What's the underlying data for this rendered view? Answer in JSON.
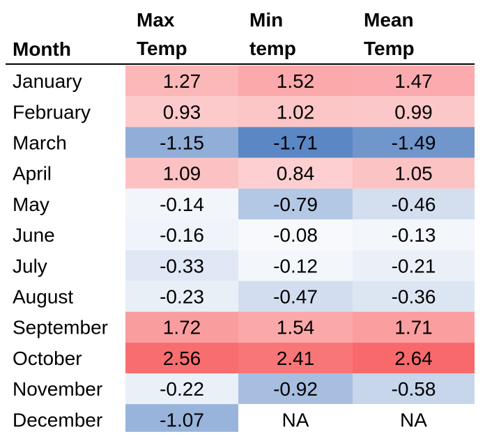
{
  "chart_data": {
    "type": "heatmap",
    "columns": [
      "Month",
      "Max\nTemp",
      "Min\ntemp",
      "Mean\nTemp"
    ],
    "rows": [
      {
        "month": "January",
        "values": [
          "1.27",
          "1.52",
          "1.47"
        ]
      },
      {
        "month": "February",
        "values": [
          "0.93",
          "1.02",
          "0.99"
        ]
      },
      {
        "month": "March",
        "values": [
          "-1.15",
          "-1.71",
          "-1.49"
        ]
      },
      {
        "month": "April",
        "values": [
          "1.09",
          "0.84",
          "1.05"
        ]
      },
      {
        "month": "May",
        "values": [
          "-0.14",
          "-0.79",
          "-0.46"
        ]
      },
      {
        "month": "June",
        "values": [
          "-0.16",
          "-0.08",
          "-0.13"
        ]
      },
      {
        "month": "July",
        "values": [
          "-0.33",
          "-0.12",
          "-0.21"
        ]
      },
      {
        "month": "August",
        "values": [
          "-0.23",
          "-0.47",
          "-0.36"
        ]
      },
      {
        "month": "September",
        "values": [
          "1.72",
          "1.54",
          "1.71"
        ]
      },
      {
        "month": "October",
        "values": [
          "2.56",
          "2.41",
          "2.64"
        ]
      },
      {
        "month": "November",
        "values": [
          "-0.22",
          "-0.92",
          "-0.58"
        ]
      },
      {
        "month": "December",
        "values": [
          "-1.07",
          "NA",
          "NA"
        ]
      }
    ],
    "color_scale": {
      "negative_color": "#5b87c5",
      "neutral_color": "#ffffff",
      "positive_color": "#f8696b",
      "min": -1.71,
      "max": 2.64
    },
    "grid": false,
    "header_rule_color": "#000000"
  }
}
